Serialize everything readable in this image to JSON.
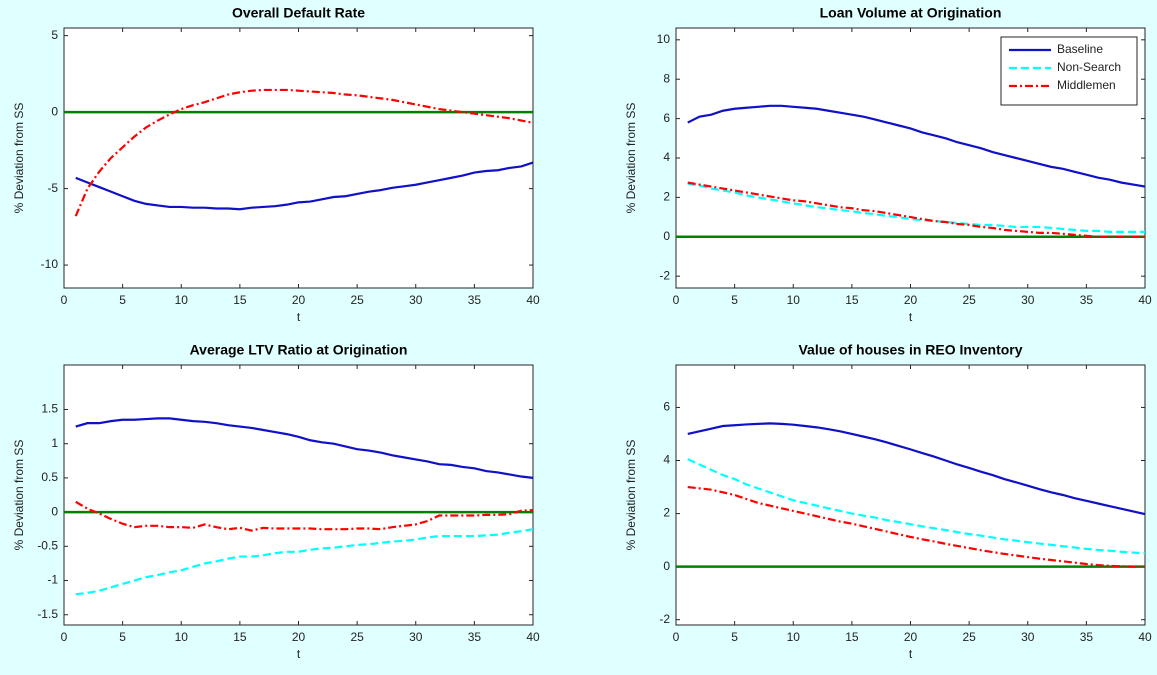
{
  "chart_data": [
    {
      "type": "line",
      "title": "Overall Default Rate",
      "xlabel": "t",
      "ylabel": "% Deviation from SS",
      "x": [
        1,
        2,
        3,
        4,
        5,
        6,
        7,
        8,
        9,
        10,
        11,
        12,
        13,
        14,
        15,
        16,
        17,
        18,
        19,
        20,
        21,
        22,
        23,
        24,
        25,
        26,
        27,
        28,
        29,
        30,
        31,
        32,
        33,
        34,
        35,
        36,
        37,
        38,
        39,
        40
      ],
      "xlim": [
        0,
        40
      ],
      "xticks": [
        0,
        5,
        10,
        15,
        20,
        25,
        30,
        35,
        40
      ],
      "ylim": [
        -11.5,
        5.5
      ],
      "yticks": [
        -10,
        -5,
        0,
        5
      ],
      "hline": {
        "value": 0,
        "color": "#008000"
      },
      "series": [
        {
          "name": "Baseline",
          "color": "#1010c8",
          "style": "solid",
          "values": [
            -4.3,
            -4.6,
            -4.9,
            -5.2,
            -5.5,
            -5.8,
            -6.0,
            -6.1,
            -6.2,
            -6.2,
            -6.25,
            -6.25,
            -6.3,
            -6.3,
            -6.35,
            -6.25,
            -6.2,
            -6.15,
            -6.05,
            -5.9,
            -5.85,
            -5.7,
            -5.55,
            -5.5,
            -5.35,
            -5.2,
            -5.1,
            -4.95,
            -4.85,
            -4.75,
            -4.6,
            -4.45,
            -4.3,
            -4.15,
            -3.95,
            -3.85,
            -3.8,
            -3.65,
            -3.55,
            -3.3
          ]
        },
        {
          "name": "Middlemen",
          "color": "#ff0000",
          "style": "dashdot",
          "values": [
            -6.8,
            -5.0,
            -3.9,
            -3.0,
            -2.3,
            -1.6,
            -1.0,
            -0.55,
            -0.15,
            0.2,
            0.45,
            0.65,
            0.9,
            1.15,
            1.3,
            1.4,
            1.45,
            1.45,
            1.45,
            1.4,
            1.35,
            1.3,
            1.25,
            1.15,
            1.1,
            1.0,
            0.9,
            0.8,
            0.65,
            0.5,
            0.35,
            0.2,
            0.1,
            0.0,
            -0.1,
            -0.2,
            -0.3,
            -0.4,
            -0.55,
            -0.7
          ]
        }
      ]
    },
    {
      "type": "line",
      "title": "Loan Volume at Origination",
      "xlabel": "t",
      "ylabel": "% Deviation from SS",
      "x": [
        1,
        2,
        3,
        4,
        5,
        6,
        7,
        8,
        9,
        10,
        11,
        12,
        13,
        14,
        15,
        16,
        17,
        18,
        19,
        20,
        21,
        22,
        23,
        24,
        25,
        26,
        27,
        28,
        29,
        30,
        31,
        32,
        33,
        34,
        35,
        36,
        37,
        38,
        39,
        40
      ],
      "xlim": [
        0,
        40
      ],
      "xticks": [
        0,
        5,
        10,
        15,
        20,
        25,
        30,
        35,
        40
      ],
      "ylim": [
        -2.6,
        10.6
      ],
      "yticks": [
        -2,
        0,
        2,
        4,
        6,
        8,
        10
      ],
      "hline": {
        "value": 0,
        "color": "#008000"
      },
      "legend": "upper right",
      "series": [
        {
          "name": "Baseline",
          "color": "#1010c8",
          "style": "solid",
          "values": [
            5.8,
            6.1,
            6.2,
            6.4,
            6.5,
            6.55,
            6.6,
            6.65,
            6.65,
            6.6,
            6.55,
            6.5,
            6.4,
            6.3,
            6.2,
            6.1,
            5.95,
            5.8,
            5.65,
            5.5,
            5.3,
            5.15,
            5.0,
            4.8,
            4.65,
            4.5,
            4.3,
            4.15,
            4.0,
            3.85,
            3.7,
            3.55,
            3.45,
            3.3,
            3.15,
            3.0,
            2.9,
            2.75,
            2.65,
            2.55
          ]
        },
        {
          "name": "Non-Search",
          "color": "#00ffff",
          "style": "dashed",
          "values": [
            2.7,
            2.6,
            2.45,
            2.35,
            2.25,
            2.1,
            2.0,
            1.9,
            1.8,
            1.7,
            1.6,
            1.5,
            1.45,
            1.35,
            1.3,
            1.2,
            1.15,
            1.05,
            1.0,
            0.9,
            0.85,
            0.8,
            0.75,
            0.7,
            0.65,
            0.6,
            0.6,
            0.55,
            0.5,
            0.5,
            0.5,
            0.45,
            0.4,
            0.35,
            0.3,
            0.3,
            0.25,
            0.25,
            0.25,
            0.25
          ]
        },
        {
          "name": "Middlemen",
          "color": "#ff0000",
          "style": "dashdot",
          "values": [
            2.75,
            2.65,
            2.55,
            2.45,
            2.35,
            2.25,
            2.15,
            2.05,
            1.95,
            1.85,
            1.8,
            1.7,
            1.6,
            1.5,
            1.45,
            1.35,
            1.3,
            1.2,
            1.1,
            1.0,
            0.9,
            0.8,
            0.75,
            0.65,
            0.6,
            0.5,
            0.45,
            0.35,
            0.3,
            0.25,
            0.2,
            0.2,
            0.15,
            0.1,
            0.05,
            0.0,
            0.0,
            0.0,
            0.0,
            0.0
          ]
        }
      ]
    },
    {
      "type": "line",
      "title": "Average LTV Ratio at Origination",
      "xlabel": "t",
      "ylabel": "% Deviation from SS",
      "x": [
        1,
        2,
        3,
        4,
        5,
        6,
        7,
        8,
        9,
        10,
        11,
        12,
        13,
        14,
        15,
        16,
        17,
        18,
        19,
        20,
        21,
        22,
        23,
        24,
        25,
        26,
        27,
        28,
        29,
        30,
        31,
        32,
        33,
        34,
        35,
        36,
        37,
        38,
        39,
        40
      ],
      "xlim": [
        0,
        40
      ],
      "xticks": [
        0,
        5,
        10,
        15,
        20,
        25,
        30,
        35,
        40
      ],
      "ylim": [
        -1.65,
        2.15
      ],
      "yticks": [
        -1.5,
        -1,
        -0.5,
        0,
        0.5,
        1,
        1.5
      ],
      "hline": {
        "value": 0,
        "color": "#008000"
      },
      "series": [
        {
          "name": "Baseline",
          "color": "#1010c8",
          "style": "solid",
          "values": [
            1.25,
            1.3,
            1.3,
            1.33,
            1.35,
            1.35,
            1.36,
            1.37,
            1.37,
            1.35,
            1.33,
            1.32,
            1.3,
            1.27,
            1.25,
            1.23,
            1.2,
            1.17,
            1.14,
            1.1,
            1.05,
            1.02,
            1.0,
            0.96,
            0.92,
            0.9,
            0.87,
            0.83,
            0.8,
            0.77,
            0.74,
            0.7,
            0.69,
            0.66,
            0.64,
            0.6,
            0.58,
            0.55,
            0.52,
            0.5
          ]
        },
        {
          "name": "Non-Search",
          "color": "#00ffff",
          "style": "dashed",
          "values": [
            -1.2,
            -1.18,
            -1.15,
            -1.1,
            -1.05,
            -1.0,
            -0.95,
            -0.92,
            -0.88,
            -0.85,
            -0.8,
            -0.75,
            -0.72,
            -0.68,
            -0.65,
            -0.65,
            -0.63,
            -0.6,
            -0.58,
            -0.58,
            -0.55,
            -0.53,
            -0.52,
            -0.5,
            -0.48,
            -0.47,
            -0.45,
            -0.43,
            -0.42,
            -0.4,
            -0.37,
            -0.35,
            -0.35,
            -0.35,
            -0.35,
            -0.34,
            -0.33,
            -0.3,
            -0.28,
            -0.25
          ]
        },
        {
          "name": "Middlemen",
          "color": "#ff0000",
          "style": "dashdot",
          "values": [
            0.15,
            0.05,
            -0.02,
            -0.1,
            -0.17,
            -0.22,
            -0.2,
            -0.2,
            -0.22,
            -0.22,
            -0.23,
            -0.18,
            -0.22,
            -0.25,
            -0.23,
            -0.27,
            -0.23,
            -0.24,
            -0.24,
            -0.24,
            -0.24,
            -0.25,
            -0.25,
            -0.25,
            -0.24,
            -0.24,
            -0.25,
            -0.22,
            -0.2,
            -0.18,
            -0.13,
            -0.05,
            -0.05,
            -0.05,
            -0.05,
            -0.04,
            -0.04,
            -0.03,
            0.02,
            0.03
          ]
        }
      ]
    },
    {
      "type": "line",
      "title": "Value of houses in REO Inventory",
      "xlabel": "t",
      "ylabel": "% Deviation from SS",
      "x": [
        1,
        2,
        3,
        4,
        5,
        6,
        7,
        8,
        9,
        10,
        11,
        12,
        13,
        14,
        15,
        16,
        17,
        18,
        19,
        20,
        21,
        22,
        23,
        24,
        25,
        26,
        27,
        28,
        29,
        30,
        31,
        32,
        33,
        34,
        35,
        36,
        37,
        38,
        39,
        40
      ],
      "xlim": [
        0,
        40
      ],
      "xticks": [
        0,
        5,
        10,
        15,
        20,
        25,
        30,
        35,
        40
      ],
      "ylim": [
        -2.2,
        7.6
      ],
      "yticks": [
        -2,
        0,
        2,
        4,
        6
      ],
      "hline": {
        "value": 0,
        "color": "#008000"
      },
      "series": [
        {
          "name": "Baseline",
          "color": "#1010c8",
          "style": "solid",
          "values": [
            5.0,
            5.1,
            5.2,
            5.3,
            5.33,
            5.36,
            5.38,
            5.4,
            5.38,
            5.35,
            5.3,
            5.25,
            5.18,
            5.1,
            5.0,
            4.9,
            4.8,
            4.68,
            4.55,
            4.42,
            4.28,
            4.15,
            4.0,
            3.85,
            3.72,
            3.58,
            3.45,
            3.3,
            3.18,
            3.05,
            2.92,
            2.8,
            2.7,
            2.58,
            2.48,
            2.38,
            2.28,
            2.18,
            2.08,
            1.98
          ]
        },
        {
          "name": "Non-Search",
          "color": "#00ffff",
          "style": "dashed",
          "values": [
            4.05,
            3.85,
            3.65,
            3.45,
            3.3,
            3.1,
            2.95,
            2.8,
            2.65,
            2.5,
            2.4,
            2.3,
            2.2,
            2.1,
            2.0,
            1.92,
            1.85,
            1.75,
            1.68,
            1.6,
            1.52,
            1.45,
            1.38,
            1.3,
            1.23,
            1.17,
            1.1,
            1.03,
            0.98,
            0.92,
            0.87,
            0.82,
            0.77,
            0.72,
            0.67,
            0.63,
            0.6,
            0.56,
            0.53,
            0.5
          ]
        },
        {
          "name": "Middlemen",
          "color": "#ff0000",
          "style": "dashdot",
          "values": [
            3.0,
            2.95,
            2.9,
            2.8,
            2.7,
            2.55,
            2.4,
            2.3,
            2.2,
            2.1,
            2.0,
            1.9,
            1.8,
            1.7,
            1.62,
            1.52,
            1.42,
            1.32,
            1.22,
            1.12,
            1.03,
            0.95,
            0.86,
            0.78,
            0.7,
            0.62,
            0.55,
            0.48,
            0.42,
            0.36,
            0.3,
            0.25,
            0.2,
            0.15,
            0.1,
            0.06,
            0.03,
            0.01,
            0.0,
            0.0
          ]
        }
      ]
    }
  ]
}
